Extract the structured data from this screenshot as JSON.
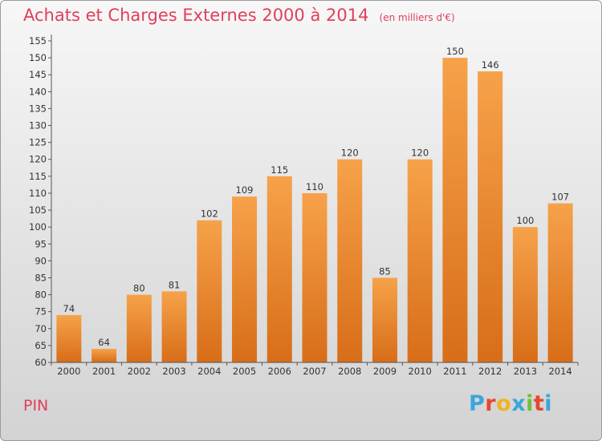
{
  "header": {
    "title": "Achats et Charges Externes 2000 à 2014",
    "subtitle": "(en milliers d'€)"
  },
  "footer": {
    "commune": "PIN",
    "brand": "Proxiti"
  },
  "colors": {
    "title": "#e0405a",
    "bar_top": "#f6a24a",
    "bar_bottom": "#d86d18",
    "logo_letters": [
      "#3aa6dc",
      "#e5472f",
      "#f0b323",
      "#3aa6dc",
      "#6fbf3a",
      "#e5472f",
      "#3aa6dc"
    ]
  },
  "chart_data": {
    "type": "bar",
    "title": "Achats et Charges Externes 2000 à 2014",
    "categories": [
      "2000",
      "2001",
      "2002",
      "2003",
      "2004",
      "2005",
      "2006",
      "2007",
      "2008",
      "2009",
      "2010",
      "2011",
      "2012",
      "2013",
      "2014"
    ],
    "values": [
      74,
      64,
      80,
      81,
      102,
      109,
      115,
      110,
      120,
      85,
      120,
      150,
      146,
      100,
      107
    ],
    "data_labels": [
      "74",
      "64",
      "80",
      "81",
      "102",
      "109",
      "115",
      "110",
      "120",
      "85",
      "120",
      "150",
      "146",
      "100",
      "107"
    ],
    "yticks": [
      "60",
      "65",
      "70",
      "75",
      "80",
      "85",
      "90",
      "95",
      "100",
      "105",
      "110",
      "115",
      "120",
      "125",
      "130",
      "135",
      "140",
      "145",
      "150",
      "155"
    ],
    "ylim": [
      60,
      155
    ],
    "grid": false,
    "legend": "none"
  }
}
